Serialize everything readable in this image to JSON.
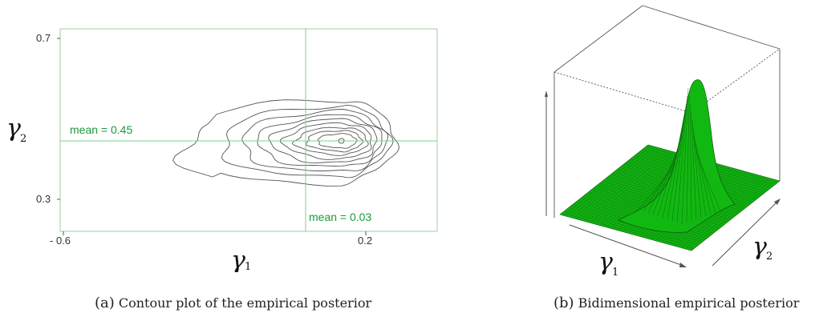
{
  "chart_data": [
    {
      "type": "contour",
      "xlabel": "γ",
      "xlabel_subscript": "1",
      "ylabel": "γ",
      "ylabel_subscript": "2",
      "x_ticks": [
        "- 0.6",
        "0.2"
      ],
      "y_ticks": [
        "0.7",
        "0.3"
      ],
      "xlim": [
        -0.6,
        0.2
      ],
      "ylim": [
        0.3,
        0.7
      ],
      "mean_x": 0.03,
      "mean_y": 0.45,
      "annotations": [
        "mean = 0.45",
        "mean = 0.03"
      ],
      "peak": {
        "x": 0.18,
        "y": 0.45
      },
      "contour_levels": 10,
      "colors": {
        "contour": "#555555",
        "mean_line": "#7fcf8f",
        "annotation": "#1a9a3a"
      }
    },
    {
      "type": "surface3d",
      "xlabel": "γ",
      "xlabel_subscript": "1",
      "ylabel": "γ",
      "ylabel_subscript": "2",
      "colors": {
        "surface": "#11b511",
        "mesh": "#0a5a0a"
      }
    }
  ],
  "captions": {
    "a": {
      "label": "(a)",
      "text": "Contour plot of the empirical posterior"
    },
    "b": {
      "label": "(b)",
      "text": "Bidimensional empirical posterior"
    }
  }
}
